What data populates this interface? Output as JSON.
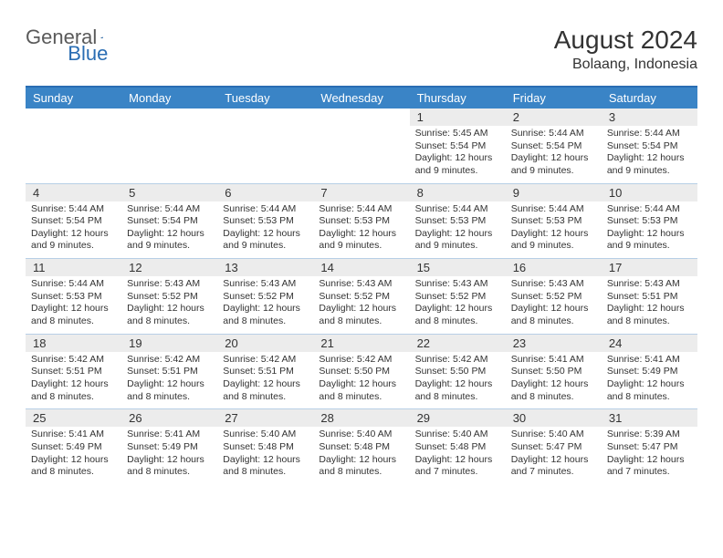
{
  "brand": {
    "part1": "General",
    "part2": "Blue"
  },
  "title": "August 2024",
  "location": "Bolaang, Indonesia",
  "colors": {
    "header_bg": "#3a84c6",
    "header_text": "#ffffff",
    "border": "#2a6db3",
    "daynum_bg": "#ececec",
    "text": "#333333",
    "logo_gray": "#5a5a5a",
    "logo_blue": "#2a6db3"
  },
  "days_of_week": [
    "Sunday",
    "Monday",
    "Tuesday",
    "Wednesday",
    "Thursday",
    "Friday",
    "Saturday"
  ],
  "weeks": [
    {
      "nums": [
        "",
        "",
        "",
        "",
        "1",
        "2",
        "3"
      ],
      "cells": [
        {
          "sunrise": "",
          "sunset": "",
          "daylight": ""
        },
        {
          "sunrise": "",
          "sunset": "",
          "daylight": ""
        },
        {
          "sunrise": "",
          "sunset": "",
          "daylight": ""
        },
        {
          "sunrise": "",
          "sunset": "",
          "daylight": ""
        },
        {
          "sunrise": "Sunrise: 5:45 AM",
          "sunset": "Sunset: 5:54 PM",
          "daylight": "Daylight: 12 hours and 9 minutes."
        },
        {
          "sunrise": "Sunrise: 5:44 AM",
          "sunset": "Sunset: 5:54 PM",
          "daylight": "Daylight: 12 hours and 9 minutes."
        },
        {
          "sunrise": "Sunrise: 5:44 AM",
          "sunset": "Sunset: 5:54 PM",
          "daylight": "Daylight: 12 hours and 9 minutes."
        }
      ]
    },
    {
      "nums": [
        "4",
        "5",
        "6",
        "7",
        "8",
        "9",
        "10"
      ],
      "cells": [
        {
          "sunrise": "Sunrise: 5:44 AM",
          "sunset": "Sunset: 5:54 PM",
          "daylight": "Daylight: 12 hours and 9 minutes."
        },
        {
          "sunrise": "Sunrise: 5:44 AM",
          "sunset": "Sunset: 5:54 PM",
          "daylight": "Daylight: 12 hours and 9 minutes."
        },
        {
          "sunrise": "Sunrise: 5:44 AM",
          "sunset": "Sunset: 5:53 PM",
          "daylight": "Daylight: 12 hours and 9 minutes."
        },
        {
          "sunrise": "Sunrise: 5:44 AM",
          "sunset": "Sunset: 5:53 PM",
          "daylight": "Daylight: 12 hours and 9 minutes."
        },
        {
          "sunrise": "Sunrise: 5:44 AM",
          "sunset": "Sunset: 5:53 PM",
          "daylight": "Daylight: 12 hours and 9 minutes."
        },
        {
          "sunrise": "Sunrise: 5:44 AM",
          "sunset": "Sunset: 5:53 PM",
          "daylight": "Daylight: 12 hours and 9 minutes."
        },
        {
          "sunrise": "Sunrise: 5:44 AM",
          "sunset": "Sunset: 5:53 PM",
          "daylight": "Daylight: 12 hours and 9 minutes."
        }
      ]
    },
    {
      "nums": [
        "11",
        "12",
        "13",
        "14",
        "15",
        "16",
        "17"
      ],
      "cells": [
        {
          "sunrise": "Sunrise: 5:44 AM",
          "sunset": "Sunset: 5:53 PM",
          "daylight": "Daylight: 12 hours and 8 minutes."
        },
        {
          "sunrise": "Sunrise: 5:43 AM",
          "sunset": "Sunset: 5:52 PM",
          "daylight": "Daylight: 12 hours and 8 minutes."
        },
        {
          "sunrise": "Sunrise: 5:43 AM",
          "sunset": "Sunset: 5:52 PM",
          "daylight": "Daylight: 12 hours and 8 minutes."
        },
        {
          "sunrise": "Sunrise: 5:43 AM",
          "sunset": "Sunset: 5:52 PM",
          "daylight": "Daylight: 12 hours and 8 minutes."
        },
        {
          "sunrise": "Sunrise: 5:43 AM",
          "sunset": "Sunset: 5:52 PM",
          "daylight": "Daylight: 12 hours and 8 minutes."
        },
        {
          "sunrise": "Sunrise: 5:43 AM",
          "sunset": "Sunset: 5:52 PM",
          "daylight": "Daylight: 12 hours and 8 minutes."
        },
        {
          "sunrise": "Sunrise: 5:43 AM",
          "sunset": "Sunset: 5:51 PM",
          "daylight": "Daylight: 12 hours and 8 minutes."
        }
      ]
    },
    {
      "nums": [
        "18",
        "19",
        "20",
        "21",
        "22",
        "23",
        "24"
      ],
      "cells": [
        {
          "sunrise": "Sunrise: 5:42 AM",
          "sunset": "Sunset: 5:51 PM",
          "daylight": "Daylight: 12 hours and 8 minutes."
        },
        {
          "sunrise": "Sunrise: 5:42 AM",
          "sunset": "Sunset: 5:51 PM",
          "daylight": "Daylight: 12 hours and 8 minutes."
        },
        {
          "sunrise": "Sunrise: 5:42 AM",
          "sunset": "Sunset: 5:51 PM",
          "daylight": "Daylight: 12 hours and 8 minutes."
        },
        {
          "sunrise": "Sunrise: 5:42 AM",
          "sunset": "Sunset: 5:50 PM",
          "daylight": "Daylight: 12 hours and 8 minutes."
        },
        {
          "sunrise": "Sunrise: 5:42 AM",
          "sunset": "Sunset: 5:50 PM",
          "daylight": "Daylight: 12 hours and 8 minutes."
        },
        {
          "sunrise": "Sunrise: 5:41 AM",
          "sunset": "Sunset: 5:50 PM",
          "daylight": "Daylight: 12 hours and 8 minutes."
        },
        {
          "sunrise": "Sunrise: 5:41 AM",
          "sunset": "Sunset: 5:49 PM",
          "daylight": "Daylight: 12 hours and 8 minutes."
        }
      ]
    },
    {
      "nums": [
        "25",
        "26",
        "27",
        "28",
        "29",
        "30",
        "31"
      ],
      "cells": [
        {
          "sunrise": "Sunrise: 5:41 AM",
          "sunset": "Sunset: 5:49 PM",
          "daylight": "Daylight: 12 hours and 8 minutes."
        },
        {
          "sunrise": "Sunrise: 5:41 AM",
          "sunset": "Sunset: 5:49 PM",
          "daylight": "Daylight: 12 hours and 8 minutes."
        },
        {
          "sunrise": "Sunrise: 5:40 AM",
          "sunset": "Sunset: 5:48 PM",
          "daylight": "Daylight: 12 hours and 8 minutes."
        },
        {
          "sunrise": "Sunrise: 5:40 AM",
          "sunset": "Sunset: 5:48 PM",
          "daylight": "Daylight: 12 hours and 8 minutes."
        },
        {
          "sunrise": "Sunrise: 5:40 AM",
          "sunset": "Sunset: 5:48 PM",
          "daylight": "Daylight: 12 hours and 7 minutes."
        },
        {
          "sunrise": "Sunrise: 5:40 AM",
          "sunset": "Sunset: 5:47 PM",
          "daylight": "Daylight: 12 hours and 7 minutes."
        },
        {
          "sunrise": "Sunrise: 5:39 AM",
          "sunset": "Sunset: 5:47 PM",
          "daylight": "Daylight: 12 hours and 7 minutes."
        }
      ]
    }
  ]
}
